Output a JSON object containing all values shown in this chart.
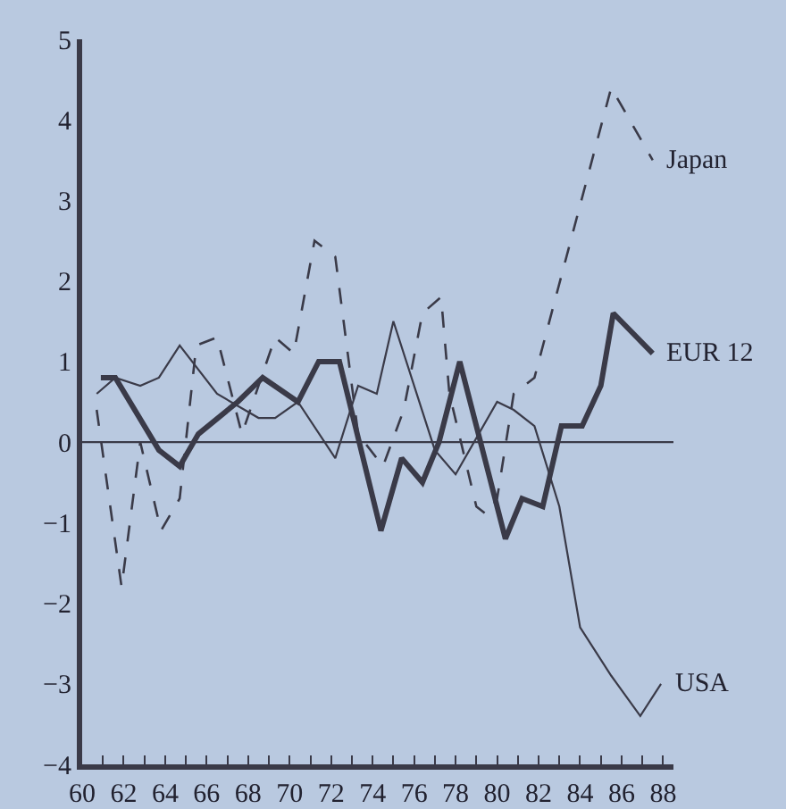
{
  "chart_data": {
    "type": "line",
    "legend": false,
    "grid": false,
    "marker": "none",
    "xlim": [
      60,
      88.5
    ],
    "ylim": [
      -4,
      5
    ],
    "xticks": [
      60,
      {
        "value": 61,
        "label": null
      },
      62,
      {
        "value": 63,
        "label": null
      },
      64,
      {
        "value": 65,
        "label": null
      },
      66,
      {
        "value": 67,
        "label": null
      },
      68,
      {
        "value": 69,
        "label": null
      },
      70,
      {
        "value": 71,
        "label": null
      },
      72,
      {
        "value": 73,
        "label": null
      },
      74,
      {
        "value": 75,
        "label": null
      },
      76,
      {
        "value": 77,
        "label": null
      },
      78,
      {
        "value": 79,
        "label": null
      },
      80,
      {
        "value": 81,
        "label": null
      },
      82,
      {
        "value": 83,
        "label": null
      },
      84,
      {
        "value": 85,
        "label": null
      },
      86,
      {
        "value": 87,
        "label": null
      },
      88
    ],
    "yticks": [
      -4,
      -3,
      -2,
      -1,
      0,
      1,
      2,
      3,
      4,
      5
    ],
    "ref_lines": [
      {
        "axis": "y",
        "value": 0,
        "color": "#3a3a48",
        "line_style": "solid"
      }
    ],
    "series": [
      {
        "name": "Japan",
        "color": "#3a3a48",
        "line_style": "dashed",
        "x": [
          60.7,
          61.9,
          62.8,
          63.8,
          64.7,
          65.5,
          66.5,
          67.7,
          69.3,
          70.2,
          71.2,
          72.2,
          73.3,
          74.5,
          75.5,
          76.4,
          77.3,
          77.7,
          79,
          79.5,
          80,
          80.8,
          81.8,
          85.5,
          87.5
        ],
        "values": [
          0.4,
          -1.8,
          0,
          -1.1,
          -0.7,
          1.2,
          1.3,
          0.1,
          1.3,
          1.1,
          2.5,
          2.3,
          0.1,
          -0.3,
          0.4,
          1.6,
          1.8,
          0.6,
          -0.8,
          -0.9,
          -0.7,
          0.6,
          0.8,
          4.4,
          3.5
        ]
      },
      {
        "name": "EUR 12",
        "color": "#3a3a48",
        "line_style": "solid",
        "x": [
          60.9,
          61.6,
          63.7,
          64.7,
          65.6,
          67.5,
          68.7,
          70.4,
          71.4,
          72.4,
          74.4,
          75.4,
          76.4,
          77.2,
          78.2,
          79.1,
          80.4,
          81.2,
          82.2,
          83.1,
          84.1,
          85,
          85.6,
          87.5
        ],
        "values": [
          0.8,
          0.8,
          -0.1,
          -0.3,
          0.1,
          0.5,
          0.8,
          0.5,
          1,
          1,
          -1.1,
          -0.2,
          -0.5,
          0,
          1,
          0.1,
          -1.2,
          -0.7,
          -0.8,
          0.2,
          0.2,
          0.7,
          1.6,
          1.1
        ]
      },
      {
        "name": "USA",
        "color": "#3a3a48",
        "line_style": "solid",
        "x": [
          60.7,
          61.6,
          62.8,
          63.7,
          64.7,
          66.5,
          68.5,
          69.3,
          70.4,
          72.2,
          73.3,
          74.2,
          75,
          77,
          78,
          80,
          80.8,
          81.8,
          83,
          84,
          85.5,
          86.9,
          87.9
        ],
        "values": [
          0.6,
          0.8,
          0.7,
          0.8,
          1.2,
          0.6,
          0.3,
          0.3,
          0.5,
          -0.2,
          0.7,
          0.6,
          1.5,
          -0.1,
          -0.4,
          0.5,
          0.4,
          0.2,
          -0.8,
          -2.3,
          -2.9,
          -3.4,
          -3
        ]
      }
    ]
  }
}
